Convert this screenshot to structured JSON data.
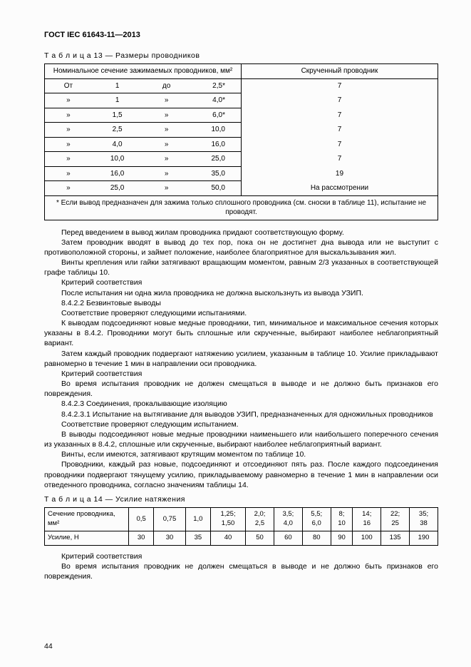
{
  "header": "ГОСТ IEC 61643-11—2013",
  "table13": {
    "caption": "Т а б л и ц а  13 — Размеры проводников",
    "col1_header": "Номинальное сечение зажимаемых проводников, мм²",
    "col2_header": "Скрученный проводник",
    "rows": [
      {
        "from_lbl": "От",
        "from": "1",
        "to_lbl": "до",
        "to": "2,5*",
        "val": "7"
      },
      {
        "from_lbl": "»",
        "from": "1",
        "to_lbl": "»",
        "to": "4,0*",
        "val": "7"
      },
      {
        "from_lbl": "»",
        "from": "1,5",
        "to_lbl": "»",
        "to": "6,0*",
        "val": "7"
      },
      {
        "from_lbl": "»",
        "from": "2,5",
        "to_lbl": "»",
        "to": "10,0",
        "val": "7"
      },
      {
        "from_lbl": "»",
        "from": "4,0",
        "to_lbl": "»",
        "to": "16,0",
        "val": "7"
      },
      {
        "from_lbl": "»",
        "from": "10,0",
        "to_lbl": "»",
        "to": "25,0",
        "val": "7"
      },
      {
        "from_lbl": "»",
        "from": "16,0",
        "to_lbl": "»",
        "to": "35,0",
        "val": "19"
      },
      {
        "from_lbl": "»",
        "from": "25,0",
        "to_lbl": "»",
        "to": "50,0",
        "val": "На рассмотрении"
      }
    ],
    "footnote": "* Если вывод предназначен для зажима только сплошного проводника (см. сноски в таблице 11), испытание не проводят."
  },
  "paragraphs": [
    "Перед введением в вывод жилам проводника придают соответствующую форму.",
    "Затем проводник вводят в вывод до тех пор, пока он не достигнет дна вывода или не выступит с противоположной стороны, и займет положение, наиболее благоприятное для выскальзывания жил.",
    "Винты крепления или гайки затягивают вращающим моментом, равным 2/3 указанных в соответствующей графе таблицы 10.",
    "Критерий соответствия",
    "После испытания ни одна жила проводника не должна выскользнуть из вывода УЗИП.",
    "8.4.2.2 Безвинтовые выводы",
    "Соответствие проверяют следующими испытаниями.",
    "К выводам подсоединяют новые медные проводники, тип, минимальное и максимальное сечения которых указаны в 8.4.2. Проводники могут быть сплошные или скрученные, выбирают наиболее неблагоприятный вариант.",
    "Затем каждый проводник подвергают натяжению усилием, указанным в таблице 10. Усилие прикладывают равномерно в течение 1 мин в направлении оси проводника.",
    "Критерий соответствия",
    "Во время испытания проводник не должен смещаться в выводе и не должно быть признаков его повреждения.",
    "8.4.2.3 Соединения, прокалывающие изоляцию",
    "8.4.2.3.1 Испытание на вытягивание для выводов УЗИП, предназначенных для одножильных проводников",
    "Соответствие проверяют следующим испытанием.",
    "В выводы подсоединяют новые медные проводники наименьшего или наибольшего поперечного сечения из указанных в 8.4.2, сплошные или скрученные, выбирают наиболее неблагоприятный вариант.",
    "Винты, если имеются, затягивают крутящим моментом по таблице 10.",
    "Проводники, каждый раз новые, подсоединяют и отсоединяют пять раз. После каждого подсоединения проводники подвергают тянущему усилию, прикладываемому равномерно в течение 1 мин в направлении оси отведенного проводника, согласно значениям таблицы 14."
  ],
  "table14": {
    "caption": "Т а б л и ц а  14 — Усилие натяжения",
    "row1_label": "Сечение проводника, мм²",
    "row2_label": "Усилие, Н",
    "sections": [
      "0,5",
      "0,75",
      "1,0",
      "1,25; 1,50",
      "2,0; 2,5",
      "3,5; 4,0",
      "5,5; 6,0",
      "8; 10",
      "14; 16",
      "22; 25",
      "35; 38"
    ],
    "forces": [
      "30",
      "30",
      "35",
      "40",
      "50",
      "60",
      "80",
      "90",
      "100",
      "135",
      "190"
    ]
  },
  "after_t14": [
    "Критерий соответствия",
    "Во время испытания проводник не должен смещаться в выводе и не должно быть признаков его повреждения."
  ],
  "page_number": "44"
}
